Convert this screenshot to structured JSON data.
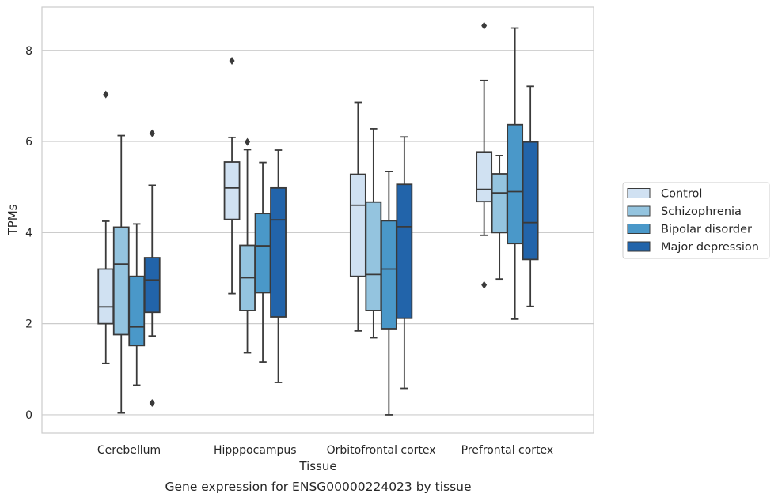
{
  "chart_data": {
    "type": "box",
    "caption": "Gene expression for ENSG00000224023 by tissue",
    "xlabel": "Tissue",
    "ylabel": "TPMs",
    "ylim": [
      -0.4,
      8.95
    ],
    "yticks": [
      0,
      2,
      4,
      6,
      8
    ],
    "grid": "horizontal",
    "legend_position": "right",
    "categories": [
      "Cerebellum",
      "Hipppocampus",
      "Orbitofrontal cortex",
      "Prefrontal cortex"
    ],
    "series": [
      {
        "name": "Control",
        "color": "#d0e1f2",
        "boxes": [
          {
            "whisker_low": 1.13,
            "q1": 2.0,
            "median": 2.37,
            "q3": 3.2,
            "whisker_high": 4.25,
            "outliers": [
              7.03
            ]
          },
          {
            "whisker_low": 2.66,
            "q1": 4.29,
            "median": 4.98,
            "q3": 5.55,
            "whisker_high": 6.09,
            "outliers": [
              7.77
            ]
          },
          {
            "whisker_low": 1.84,
            "q1": 3.04,
            "median": 4.6,
            "q3": 5.28,
            "whisker_high": 6.86,
            "outliers": []
          },
          {
            "whisker_low": 3.94,
            "q1": 4.68,
            "median": 4.95,
            "q3": 5.77,
            "whisker_high": 7.34,
            "outliers": [
              8.54,
              2.85
            ]
          }
        ]
      },
      {
        "name": "Schizophrenia",
        "color": "#94c4df",
        "boxes": [
          {
            "whisker_low": 0.04,
            "q1": 1.76,
            "median": 3.31,
            "q3": 4.12,
            "whisker_high": 6.13,
            "outliers": []
          },
          {
            "whisker_low": 1.36,
            "q1": 2.29,
            "median": 3.01,
            "q3": 3.72,
            "whisker_high": 5.82,
            "outliers": [
              5.99
            ]
          },
          {
            "whisker_low": 1.69,
            "q1": 2.29,
            "median": 3.08,
            "q3": 4.67,
            "whisker_high": 6.28,
            "outliers": []
          },
          {
            "whisker_low": 2.98,
            "q1": 4.0,
            "median": 4.87,
            "q3": 5.29,
            "whisker_high": 5.69,
            "outliers": []
          }
        ]
      },
      {
        "name": "Bipolar disorder",
        "color": "#4a98c9",
        "boxes": [
          {
            "whisker_low": 0.65,
            "q1": 1.52,
            "median": 1.93,
            "q3": 3.04,
            "whisker_high": 4.19,
            "outliers": []
          },
          {
            "whisker_low": 1.16,
            "q1": 2.68,
            "median": 3.71,
            "q3": 4.42,
            "whisker_high": 5.54,
            "outliers": []
          },
          {
            "whisker_low": 0.0,
            "q1": 1.89,
            "median": 3.2,
            "q3": 4.26,
            "whisker_high": 5.34,
            "outliers": []
          },
          {
            "whisker_low": 2.1,
            "q1": 3.76,
            "median": 4.9,
            "q3": 6.37,
            "whisker_high": 8.49,
            "outliers": []
          }
        ]
      },
      {
        "name": "Major depression",
        "color": "#2264aa",
        "boxes": [
          {
            "whisker_low": 1.73,
            "q1": 2.25,
            "median": 2.96,
            "q3": 3.45,
            "whisker_high": 5.04,
            "outliers": [
              6.18,
              0.26
            ]
          },
          {
            "whisker_low": 0.71,
            "q1": 2.15,
            "median": 4.28,
            "q3": 4.98,
            "whisker_high": 5.81,
            "outliers": []
          },
          {
            "whisker_low": 0.58,
            "q1": 2.12,
            "median": 4.13,
            "q3": 5.06,
            "whisker_high": 6.1,
            "outliers": []
          },
          {
            "whisker_low": 2.38,
            "q1": 3.41,
            "median": 4.22,
            "q3": 5.99,
            "whisker_high": 7.21,
            "outliers": []
          }
        ]
      }
    ]
  }
}
